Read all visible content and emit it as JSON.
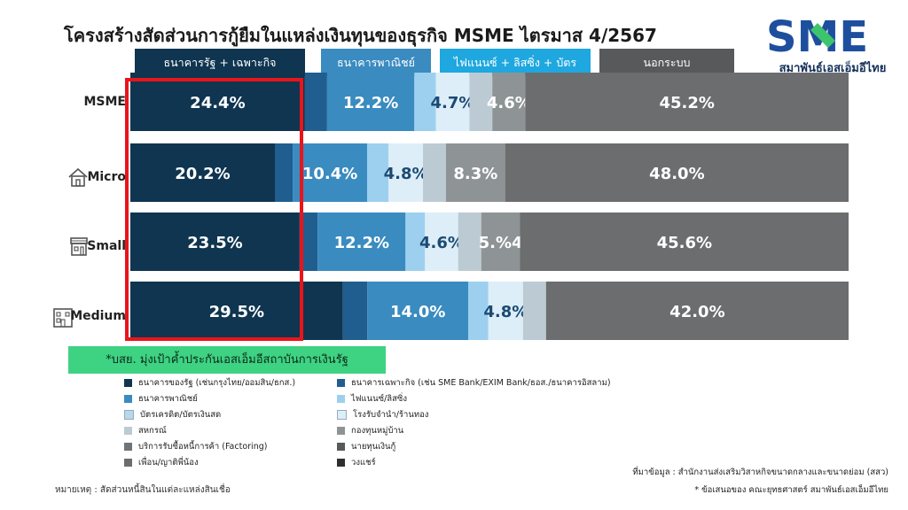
{
  "page": {
    "title": "โครงสร้างสัดส่วนการกู้ยืมในแหล่งเงินทุนของธุรกิจ MSME ไตรมาส 4/2567",
    "logo_text": "SME",
    "logo_subtitle": "สมาพันธ์เอสเอ็มอีไทย",
    "callout": "*บสย. มุ่งเป้าค้ำประกันเอสเอ็มอีสถาบันการเงินรัฐ",
    "source_line1": "ที่มาข้อมูล : สำนักงานส่งเสริมวิสาหกิจขนาดกลางและขนาดย่อม (สสว)",
    "source_line2": "* ข้อเสนอของ คณะยุทธศาสตร์ สมาพันธ์เอสเอ็มอีไทย",
    "note": "หมายเหตุ : สัดส่วนหนี้สินในแต่ละแหล่งสินเชื่อ"
  },
  "colors": {
    "state_bank": "#0f3550",
    "specialized_bank": "#1f5e8f",
    "commercial_bank": "#3a8bc0",
    "finance": "#9dd0ef",
    "pawnshop": "#ddeef8",
    "credit_card": "#b6d8ea",
    "coop": "#bccbd3",
    "village_fund": "#8e9496",
    "factoring": "#707477",
    "lender": "#58595b",
    "informal": "#6b6d6f",
    "share": "#2e2f31",
    "header_state": "#0f3550",
    "header_commercial": "#3a8bc0",
    "header_finance": "#1fa7df",
    "header_informal": "#58595b",
    "highlight": "#e8151b",
    "callout_bg": "#3ed283"
  },
  "group_headers": [
    {
      "label": "ธนาคารรัฐ + เฉพาะกิจ",
      "color_key": "header_state"
    },
    {
      "label": "ธนาคารพาณิชย์",
      "color_key": "header_commercial"
    },
    {
      "label": "ไฟแนนซ์ + ลิสซิ่ง + บัตร",
      "color_key": "header_finance"
    },
    {
      "label": "นอกระบบ",
      "color_key": "header_informal"
    }
  ],
  "legend": [
    {
      "label": "ธนาคารของรัฐ (เช่นกรุงไทย/ออมสิน/ธกส.)",
      "color_key": "state_bank"
    },
    {
      "label": "ธนาคารเฉพาะกิจ (เช่น SME Bank/EXIM Bank/ธอส./ธนาคารอิสลาม)",
      "color_key": "specialized_bank"
    },
    {
      "label": "ธนาคารพาณิชย์",
      "color_key": "commercial_bank"
    },
    {
      "label": "ไฟแนนซ์/ลิสซิ่ง",
      "color_key": "finance"
    },
    {
      "label": "บัตรเครดิต/บัตรเงินสด",
      "color_key": "credit_card"
    },
    {
      "label": "โรงรับจำนำ/ร้านทอง",
      "color_key": "pawnshop"
    },
    {
      "label": "สหกรณ์",
      "color_key": "coop"
    },
    {
      "label": "กองทุนหมู่บ้าน",
      "color_key": "village_fund"
    },
    {
      "label": "บริการรับซื้อหนี้การค้า (Factoring)",
      "color_key": "factoring"
    },
    {
      "label": "นายทุนเงินกู้",
      "color_key": "lender"
    },
    {
      "label": "เพื่อน/ญาติพี่น้อง",
      "color_key": "informal"
    },
    {
      "label": "วงแชร์",
      "color_key": "share"
    }
  ],
  "chart_data": {
    "type": "bar",
    "orientation": "horizontal",
    "stacked": true,
    "xlim": [
      0,
      100
    ],
    "categories": [
      {
        "label": "MSME",
        "icon": "chart-icon"
      },
      {
        "label": "Micro",
        "icon": "house-icon"
      },
      {
        "label": "Small",
        "icon": "shop-icon"
      },
      {
        "label": "Medium",
        "icon": "building-icon"
      }
    ],
    "rows": [
      [
        {
          "value": 24.4,
          "label": "24.4%",
          "color_key": "state_bank"
        },
        {
          "value": 3.1,
          "label": "",
          "color_key": "specialized_bank"
        },
        {
          "value": 12.2,
          "label": "12.2%",
          "color_key": "commercial_bank"
        },
        {
          "value": 3.0,
          "label": "",
          "color_key": "finance"
        },
        {
          "value": 4.7,
          "label": "4.7%",
          "color_key": "pawnshop"
        },
        {
          "value": 3.2,
          "label": "",
          "color_key": "coop"
        },
        {
          "value": 4.6,
          "label": "4.6%",
          "color_key": "village_fund"
        },
        {
          "value": 45.2,
          "label": "45.2%",
          "color_key": "informal"
        }
      ],
      [
        {
          "value": 20.2,
          "label": "20.2%",
          "color_key": "state_bank"
        },
        {
          "value": 2.5,
          "label": "",
          "color_key": "specialized_bank"
        },
        {
          "value": 10.4,
          "label": "10.4%",
          "color_key": "commercial_bank"
        },
        {
          "value": 3.0,
          "label": "",
          "color_key": "finance"
        },
        {
          "value": 4.8,
          "label": "4.8%",
          "color_key": "pawnshop"
        },
        {
          "value": 3.2,
          "label": "",
          "color_key": "coop"
        },
        {
          "value": 8.3,
          "label": "8.3%",
          "color_key": "village_fund"
        },
        {
          "value": 48.0,
          "label": "48.0%",
          "color_key": "informal"
        }
      ],
      [
        {
          "value": 23.5,
          "label": "23.5%",
          "color_key": "state_bank"
        },
        {
          "value": 2.5,
          "label": "",
          "color_key": "specialized_bank"
        },
        {
          "value": 12.2,
          "label": "12.2%",
          "color_key": "commercial_bank"
        },
        {
          "value": 2.7,
          "label": "",
          "color_key": "finance"
        },
        {
          "value": 4.6,
          "label": "4.6%",
          "color_key": "pawnshop"
        },
        {
          "value": 3.2,
          "label": "",
          "color_key": "coop"
        },
        {
          "value": 5.4,
          "label": "5.%4",
          "color_key": "village_fund"
        },
        {
          "value": 45.6,
          "label": "45.6%",
          "color_key": "informal"
        }
      ],
      [
        {
          "value": 29.5,
          "label": "29.5%",
          "color_key": "state_bank"
        },
        {
          "value": 3.4,
          "label": "",
          "color_key": "specialized_bank"
        },
        {
          "value": 14.0,
          "label": "14.0%",
          "color_key": "commercial_bank"
        },
        {
          "value": 2.8,
          "label": "",
          "color_key": "finance"
        },
        {
          "value": 4.8,
          "label": "4.8%",
          "color_key": "pawnshop"
        },
        {
          "value": 3.2,
          "label": "",
          "color_key": "coop"
        },
        {
          "value": 42.0,
          "label": "42.0%",
          "color_key": "informal"
        }
      ]
    ]
  }
}
